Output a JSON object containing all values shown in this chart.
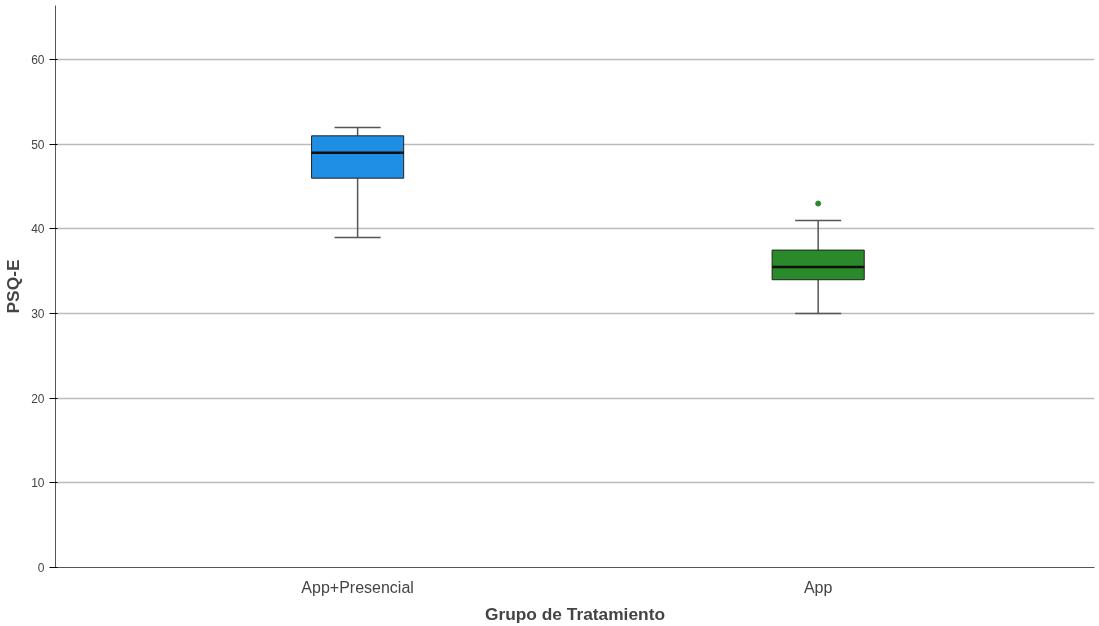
{
  "chart_data": {
    "type": "box",
    "xlabel": "Grupo de Tratamiento",
    "ylabel": "PSQ-E",
    "categories": [
      "App+Presencial",
      "App"
    ],
    "colors": [
      "#1f8fe6",
      "#2a8a2a"
    ],
    "boxes": [
      {
        "low": 39,
        "q1": 46,
        "median": 49,
        "q3": 51,
        "high": 52
      },
      {
        "low": 30,
        "q1": 34,
        "median": 35.5,
        "q3": 37.5,
        "high": 41,
        "outliers": [
          43
        ]
      }
    ],
    "ylim": [
      0,
      66.4
    ],
    "yticks": [
      0,
      10,
      20,
      30,
      40,
      50,
      60
    ],
    "grid": "y"
  }
}
